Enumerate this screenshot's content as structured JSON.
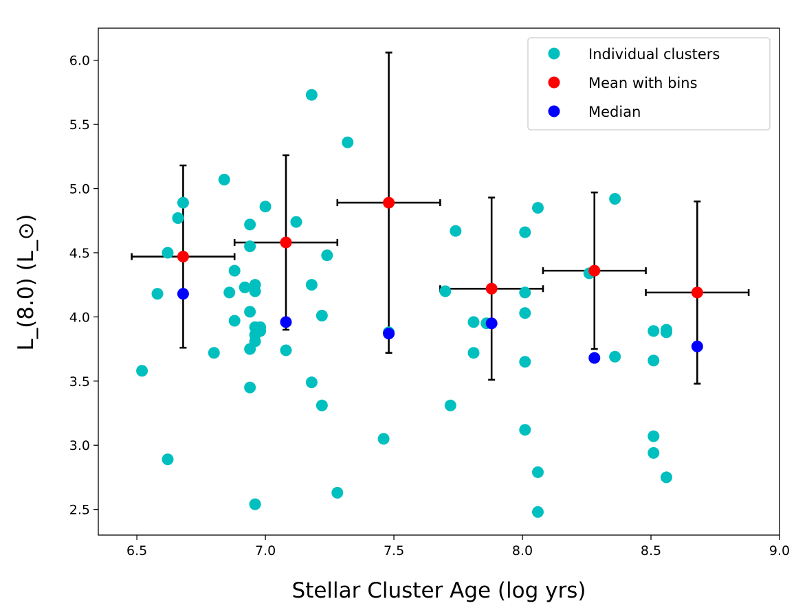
{
  "chart_data": {
    "type": "scatter",
    "title": "",
    "xlabel": "Stellar Cluster Age (log yrs)",
    "ylabel": "L_(8.0) (L_⊙)",
    "xlim": [
      6.35,
      9.0
    ],
    "ylim": [
      2.3,
      6.25
    ],
    "xticks": [
      6.5,
      7.0,
      7.5,
      8.0,
      8.5,
      9.0
    ],
    "xtick_labels": [
      "6.5",
      "7.0",
      "7.5",
      "8.0",
      "8.5",
      "9.0"
    ],
    "yticks": [
      2.5,
      3.0,
      3.5,
      4.0,
      4.5,
      5.0,
      5.5,
      6.0
    ],
    "ytick_labels": [
      "2.5",
      "3.0",
      "3.5",
      "4.0",
      "4.5",
      "5.0",
      "5.5",
      "6.0"
    ],
    "legend_position": "top-right",
    "colors": {
      "individual": "#00bfbf",
      "mean": "#ff0000",
      "median": "#0000ff",
      "errorbar": "#000000"
    },
    "series": [
      {
        "name": "Individual clusters",
        "color": "#00bfbf",
        "points": [
          {
            "x": 6.52,
            "y": 3.58
          },
          {
            "x": 6.58,
            "y": 4.18
          },
          {
            "x": 6.62,
            "y": 4.5
          },
          {
            "x": 6.62,
            "y": 2.89
          },
          {
            "x": 6.66,
            "y": 4.77
          },
          {
            "x": 6.68,
            "y": 4.89
          },
          {
            "x": 6.8,
            "y": 3.72
          },
          {
            "x": 6.84,
            "y": 5.07
          },
          {
            "x": 6.86,
            "y": 4.19
          },
          {
            "x": 6.88,
            "y": 4.36
          },
          {
            "x": 6.88,
            "y": 3.97
          },
          {
            "x": 6.92,
            "y": 4.23
          },
          {
            "x": 6.94,
            "y": 4.72
          },
          {
            "x": 6.94,
            "y": 4.55
          },
          {
            "x": 6.94,
            "y": 4.04
          },
          {
            "x": 6.94,
            "y": 3.75
          },
          {
            "x": 6.94,
            "y": 3.45
          },
          {
            "x": 6.96,
            "y": 4.25
          },
          {
            "x": 6.96,
            "y": 4.2
          },
          {
            "x": 6.96,
            "y": 3.92
          },
          {
            "x": 6.96,
            "y": 3.86
          },
          {
            "x": 6.96,
            "y": 3.81
          },
          {
            "x": 6.96,
            "y": 2.54
          },
          {
            "x": 6.98,
            "y": 3.92
          },
          {
            "x": 6.98,
            "y": 3.89
          },
          {
            "x": 7.0,
            "y": 4.86
          },
          {
            "x": 7.08,
            "y": 3.74
          },
          {
            "x": 7.12,
            "y": 4.74
          },
          {
            "x": 7.18,
            "y": 5.73
          },
          {
            "x": 7.18,
            "y": 4.25
          },
          {
            "x": 7.18,
            "y": 3.49
          },
          {
            "x": 7.22,
            "y": 4.01
          },
          {
            "x": 7.22,
            "y": 3.31
          },
          {
            "x": 7.24,
            "y": 4.48
          },
          {
            "x": 7.28,
            "y": 2.63
          },
          {
            "x": 7.32,
            "y": 5.36
          },
          {
            "x": 7.46,
            "y": 3.05
          },
          {
            "x": 7.48,
            "y": 3.88
          },
          {
            "x": 7.7,
            "y": 4.2
          },
          {
            "x": 7.72,
            "y": 3.31
          },
          {
            "x": 7.74,
            "y": 4.67
          },
          {
            "x": 7.81,
            "y": 3.96
          },
          {
            "x": 7.81,
            "y": 3.72
          },
          {
            "x": 7.86,
            "y": 3.95
          },
          {
            "x": 8.01,
            "y": 4.66
          },
          {
            "x": 8.01,
            "y": 4.19
          },
          {
            "x": 8.01,
            "y": 4.03
          },
          {
            "x": 8.01,
            "y": 3.65
          },
          {
            "x": 8.01,
            "y": 3.12
          },
          {
            "x": 8.06,
            "y": 4.85
          },
          {
            "x": 8.06,
            "y": 2.79
          },
          {
            "x": 8.06,
            "y": 2.48
          },
          {
            "x": 8.26,
            "y": 4.34
          },
          {
            "x": 8.36,
            "y": 4.92
          },
          {
            "x": 8.36,
            "y": 3.69
          },
          {
            "x": 8.51,
            "y": 3.89
          },
          {
            "x": 8.51,
            "y": 3.66
          },
          {
            "x": 8.51,
            "y": 3.07
          },
          {
            "x": 8.51,
            "y": 2.94
          },
          {
            "x": 8.56,
            "y": 3.9
          },
          {
            "x": 8.56,
            "y": 3.88
          },
          {
            "x": 8.56,
            "y": 2.75
          }
        ]
      },
      {
        "name": "Mean with bins",
        "color": "#ff0000",
        "points": [
          {
            "x": 6.68,
            "y": 4.47,
            "xerr": 0.2,
            "yerr": 0.71
          },
          {
            "x": 7.08,
            "y": 4.58,
            "xerr": 0.2,
            "yerr": 0.68
          },
          {
            "x": 7.48,
            "y": 4.89,
            "xerr": 0.2,
            "yerr": 1.17
          },
          {
            "x": 7.88,
            "y": 4.22,
            "xerr": 0.2,
            "yerr": 0.71
          },
          {
            "x": 8.28,
            "y": 4.36,
            "xerr": 0.2,
            "yerr": 0.61
          },
          {
            "x": 8.68,
            "y": 4.19,
            "xerr": 0.2,
            "yerr": 0.71
          }
        ]
      },
      {
        "name": "Median",
        "color": "#0000ff",
        "points": [
          {
            "x": 6.68,
            "y": 4.18
          },
          {
            "x": 7.08,
            "y": 3.96
          },
          {
            "x": 7.48,
            "y": 3.87
          },
          {
            "x": 7.88,
            "y": 3.95
          },
          {
            "x": 8.28,
            "y": 3.68
          },
          {
            "x": 8.68,
            "y": 3.77
          }
        ]
      }
    ]
  }
}
